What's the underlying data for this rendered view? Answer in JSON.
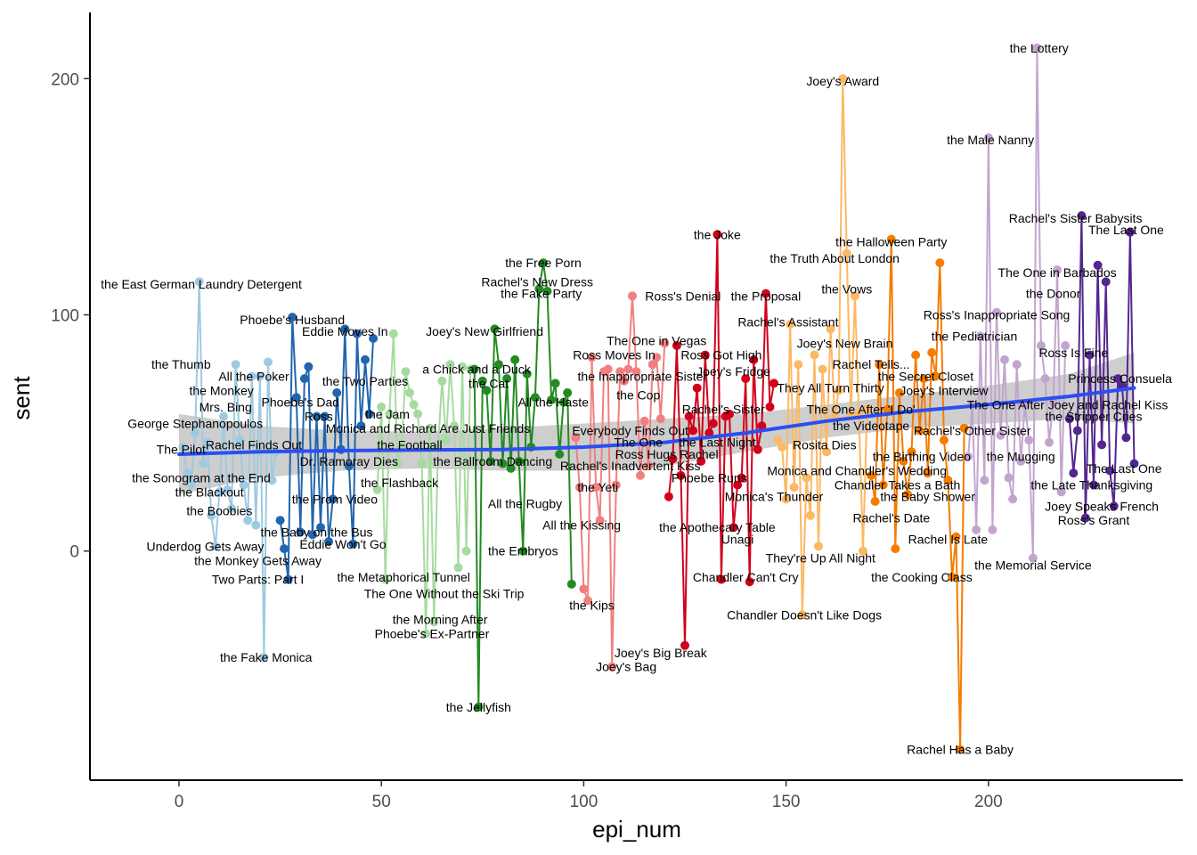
{
  "chart_data": {
    "type": "line",
    "title": "",
    "xlabel": "epi_num",
    "ylabel": "sent",
    "xlim": [
      -22,
      248
    ],
    "ylim": [
      -97,
      228
    ],
    "x_ticks": [
      0,
      50,
      100,
      150,
      200
    ],
    "y_ticks": [
      0,
      100,
      200
    ],
    "grid": false,
    "legend": "none",
    "trend": {
      "type": "smooth",
      "color": "#2a4ff0",
      "band_color": "#bdbdbd",
      "x": [
        0,
        20,
        40,
        60,
        80,
        100,
        120,
        140,
        160,
        180,
        200,
        220,
        236
      ],
      "y": [
        41,
        42,
        42.5,
        42.8,
        43,
        44,
        46,
        50,
        55,
        59,
        62,
        65.5,
        69
      ],
      "lower": [
        24,
        31,
        34,
        35,
        34,
        34,
        36,
        42,
        48,
        52,
        54,
        56,
        54
      ],
      "upper": [
        58,
        53,
        51,
        50.5,
        52,
        54,
        56,
        58,
        62,
        66,
        70,
        75,
        84
      ]
    },
    "series": [
      {
        "color": "#9ecae1",
        "x": [
          1,
          2,
          3,
          4,
          5,
          6,
          7,
          8,
          9,
          10,
          11,
          12,
          13,
          14,
          15,
          16,
          17,
          18,
          19,
          20,
          21,
          22,
          23,
          24
        ],
        "y": [
          44,
          33,
          28,
          50,
          114,
          37,
          46,
          15,
          2,
          25,
          57,
          26,
          18,
          79,
          47,
          28,
          13,
          74,
          11,
          74,
          -45,
          80,
          30,
          42
        ]
      },
      {
        "color": "#2166ac",
        "x": [
          25,
          26,
          27,
          28,
          29,
          30,
          31,
          32,
          33,
          34,
          35,
          36,
          37,
          38,
          39,
          40,
          41,
          42,
          43,
          44,
          45,
          46,
          47,
          48
        ],
        "y": [
          13,
          1,
          -12,
          99,
          65,
          8,
          73,
          78,
          7,
          57,
          10,
          57,
          4,
          22,
          67,
          43,
          94,
          36,
          3,
          92,
          53,
          81,
          58,
          90
        ]
      },
      {
        "color": "#a6dba0",
        "x": [
          49,
          50,
          51,
          52,
          53,
          54,
          55,
          56,
          57,
          58,
          59,
          60,
          61,
          62,
          63,
          64,
          65,
          66,
          67,
          68,
          69,
          70,
          71,
          72
        ],
        "y": [
          26,
          61,
          -12,
          58,
          92,
          37,
          44,
          76,
          67,
          62,
          58,
          37,
          -35,
          52,
          -30,
          44,
          72,
          47,
          79,
          53,
          -7,
          78,
          0,
          77
        ]
      },
      {
        "color": "#228b22",
        "x": [
          73,
          74,
          75,
          76,
          77,
          78,
          79,
          80,
          81,
          82,
          83,
          84,
          85,
          86,
          87,
          88,
          89,
          90,
          91,
          92,
          93,
          94,
          95,
          96,
          97
        ],
        "y": [
          77,
          -66,
          72,
          68,
          38,
          94,
          79,
          37,
          73,
          35,
          81,
          38,
          0,
          75,
          44,
          65,
          111,
          122,
          110,
          64,
          71,
          41,
          63,
          67,
          -14
        ]
      },
      {
        "color": "#f08080",
        "x": [
          98,
          99,
          100,
          101,
          102,
          103,
          104,
          105,
          106,
          107,
          108,
          109,
          110,
          111,
          112,
          113,
          114,
          115,
          116,
          117,
          118,
          119,
          120
        ],
        "y": [
          48,
          27,
          -16,
          -21,
          82,
          27,
          13,
          76,
          77,
          -49,
          28,
          76,
          72,
          77,
          108,
          76,
          32,
          55,
          36,
          79,
          82,
          56,
          88
        ]
      },
      {
        "color": "#d2001a",
        "x": [
          121,
          122,
          123,
          124,
          125,
          126,
          127,
          128,
          129,
          130,
          131,
          132,
          133,
          134,
          135,
          136,
          137,
          138,
          139,
          140,
          141,
          142,
          143,
          144,
          145,
          146,
          147
        ],
        "y": [
          23,
          39,
          87,
          32,
          -40,
          57,
          51,
          69,
          38,
          83,
          50,
          54,
          134,
          -12,
          57,
          58,
          10,
          28,
          31,
          73,
          -13,
          81,
          43,
          53,
          109,
          61,
          71
        ]
      },
      {
        "color": "#fdb863",
        "x": [
          148,
          149,
          150,
          151,
          152,
          153,
          154,
          155,
          156,
          157,
          158,
          159,
          160,
          161,
          162,
          163,
          164,
          165,
          166,
          167,
          168,
          169,
          170
        ],
        "y": [
          47,
          44,
          22,
          96,
          27,
          79,
          -27,
          31,
          15,
          83,
          2,
          77,
          42,
          94,
          57,
          68,
          200,
          126,
          57,
          108,
          58,
          0,
          60
        ]
      },
      {
        "color": "#f57c00",
        "x": [
          171,
          172,
          173,
          174,
          175,
          176,
          177,
          178,
          179,
          180,
          181,
          182,
          183,
          184,
          185,
          186,
          187,
          188,
          189,
          190,
          191,
          192,
          193,
          194
        ],
        "y": [
          32,
          21,
          79,
          28,
          60,
          132,
          1,
          67,
          38,
          24,
          42,
          83,
          51,
          73,
          33,
          84,
          74,
          122,
          47,
          30,
          -11,
          6,
          -84,
          52
        ]
      },
      {
        "color": "#c2a5cf",
        "x": [
          195,
          196,
          197,
          198,
          199,
          200,
          201,
          202,
          203,
          204,
          205,
          206,
          207,
          208,
          209,
          210,
          211,
          212,
          213,
          214,
          215,
          216,
          217,
          218,
          219
        ],
        "y": [
          40,
          62,
          9,
          91,
          30,
          175,
          9,
          101,
          49,
          81,
          31,
          22,
          79,
          38,
          62,
          47,
          -3,
          213,
          87,
          73,
          46,
          63,
          119,
          25,
          87
        ]
      },
      {
        "color": "#54278f",
        "x": [
          220,
          221,
          222,
          223,
          224,
          225,
          226,
          227,
          228,
          229,
          230,
          231,
          232,
          233,
          234,
          235,
          236
        ],
        "y": [
          56,
          33,
          51,
          142,
          14,
          83,
          28,
          121,
          45,
          114,
          34,
          19,
          73,
          70,
          48,
          135,
          37
        ]
      }
    ],
    "labels": [
      {
        "text": "the East German Laundry Detergent",
        "x": 5.5,
        "y": 113
      },
      {
        "text": "Phoebe's Husband",
        "x": 28,
        "y": 98
      },
      {
        "text": "Eddie Moves In",
        "x": 41,
        "y": 93
      },
      {
        "text": "the Thumb",
        "x": 0.5,
        "y": 79
      },
      {
        "text": "All the Poker",
        "x": 18.5,
        "y": 74
      },
      {
        "text": "the Two Parties",
        "x": 46,
        "y": 72
      },
      {
        "text": "the Monkey",
        "x": 10.5,
        "y": 68
      },
      {
        "text": "Phoebe's Dad",
        "x": 30,
        "y": 63
      },
      {
        "text": "Mrs. Bing",
        "x": 11.5,
        "y": 61
      },
      {
        "text": "the Jam",
        "x": 51.5,
        "y": 58
      },
      {
        "text": "Ross",
        "x": 34.5,
        "y": 57
      },
      {
        "text": "George Stephanopoulos",
        "x": 4,
        "y": 54
      },
      {
        "text": "Monica and Richard Are Just Friends",
        "x": 61.5,
        "y": 52
      },
      {
        "text": "Rachel Finds Out",
        "x": 18.5,
        "y": 45
      },
      {
        "text": "the Football",
        "x": 57,
        "y": 45
      },
      {
        "text": "The Pilot",
        "x": 0.5,
        "y": 43
      },
      {
        "text": "Dr. Ramoray Dies",
        "x": 42,
        "y": 38
      },
      {
        "text": "the Ballroom Dancing",
        "x": 77.5,
        "y": 38
      },
      {
        "text": "the Sonogram at the End",
        "x": 5.5,
        "y": 31
      },
      {
        "text": "the Flashback",
        "x": 54.5,
        "y": 29
      },
      {
        "text": "the Blackout",
        "x": 7.5,
        "y": 25
      },
      {
        "text": "the Prom Video",
        "x": 38.5,
        "y": 22
      },
      {
        "text": "the Boobies",
        "x": 10,
        "y": 17
      },
      {
        "text": "the Baby on the Bus",
        "x": 34,
        "y": 8
      },
      {
        "text": "Underdog Gets Away",
        "x": 6.5,
        "y": 2
      },
      {
        "text": "Eddie Won't Go",
        "x": 40.5,
        "y": 3
      },
      {
        "text": "the Monkey Gets Away",
        "x": 19.5,
        "y": -4
      },
      {
        "text": "Two Parts: Part I",
        "x": 19.5,
        "y": -12
      },
      {
        "text": "the Metaphorical Tunnel",
        "x": 55.5,
        "y": -11
      },
      {
        "text": "The One Without the Ski Trip",
        "x": 65.5,
        "y": -18
      },
      {
        "text": "the Morning After",
        "x": 64.5,
        "y": -29
      },
      {
        "text": "Phoebe's Ex-Partner",
        "x": 62.5,
        "y": -35
      },
      {
        "text": "the Fake Monica",
        "x": 21.5,
        "y": -45
      },
      {
        "text": "the Jellyfish",
        "x": 74,
        "y": -66
      },
      {
        "text": "the Free Porn",
        "x": 90,
        "y": 122
      },
      {
        "text": "Rachel's New Dress",
        "x": 88.5,
        "y": 114
      },
      {
        "text": "the Fake Party",
        "x": 89.5,
        "y": 109
      },
      {
        "text": "Joey's New Girlfriend",
        "x": 75.5,
        "y": 93
      },
      {
        "text": "a Chick and a Duck",
        "x": 73.5,
        "y": 77
      },
      {
        "text": "the Cat",
        "x": 76.5,
        "y": 71
      },
      {
        "text": "All the Haste",
        "x": 92.5,
        "y": 63
      },
      {
        "text": "the Embryos",
        "x": 85,
        "y": 0
      },
      {
        "text": "All the Rugby",
        "x": 85.5,
        "y": 20
      },
      {
        "text": "All the Kissing",
        "x": 99.5,
        "y": 11
      },
      {
        "text": "the Yeti",
        "x": 103.5,
        "y": 27
      },
      {
        "text": "the Kips",
        "x": 102,
        "y": -23
      },
      {
        "text": "Joey's Big Break",
        "x": 119,
        "y": -43
      },
      {
        "text": "Joey's Bag",
        "x": 110.5,
        "y": -49
      },
      {
        "text": "Ross Moves In",
        "x": 107.5,
        "y": 83
      },
      {
        "text": "the Inappropriate Sister",
        "x": 114.5,
        "y": 74
      },
      {
        "text": "the Cop",
        "x": 113.5,
        "y": 66
      },
      {
        "text": "Everybody Finds Out",
        "x": 111.5,
        "y": 51
      },
      {
        "text": "The One",
        "x": 113.5,
        "y": 46
      },
      {
        "text": "Ross Hugs Rachel",
        "x": 120.5,
        "y": 41
      },
      {
        "text": "Rachel's Inadvertent Kiss",
        "x": 111.5,
        "y": 36
      },
      {
        "text": "The One in Vegas",
        "x": 118,
        "y": 89
      },
      {
        "text": "Ross's Denial",
        "x": 124.5,
        "y": 108
      },
      {
        "text": "the Joke",
        "x": 133,
        "y": 134
      },
      {
        "text": "the Proposal",
        "x": 145,
        "y": 108
      },
      {
        "text": "Ross Got High",
        "x": 134,
        "y": 83
      },
      {
        "text": "Joey's Fridge",
        "x": 137,
        "y": 76
      },
      {
        "text": "Rachel's Sister",
        "x": 134.5,
        "y": 60
      },
      {
        "text": "the Last Night",
        "x": 133,
        "y": 46
      },
      {
        "text": "Phoebe Runs",
        "x": 131,
        "y": 31
      },
      {
        "text": "Monica's Thunder",
        "x": 147,
        "y": 23
      },
      {
        "text": "the Apothecary Table",
        "x": 133,
        "y": 10
      },
      {
        "text": "Unagi",
        "x": 138,
        "y": 5
      },
      {
        "text": "Chandler Can't Cry",
        "x": 140,
        "y": -11
      },
      {
        "text": "Joey's Award",
        "x": 164,
        "y": 199
      },
      {
        "text": "the Halloween Party",
        "x": 176,
        "y": 131
      },
      {
        "text": "the Truth About London",
        "x": 162,
        "y": 124
      },
      {
        "text": "the Vows",
        "x": 165,
        "y": 111
      },
      {
        "text": "Rachel's Assistant",
        "x": 150.5,
        "y": 97
      },
      {
        "text": "Joey's New Brain",
        "x": 164.5,
        "y": 88
      },
      {
        "text": "Rachel Tells...",
        "x": 171,
        "y": 79
      },
      {
        "text": "They All Turn Thirty",
        "x": 161,
        "y": 69
      },
      {
        "text": "The One After 'I Do'",
        "x": 168.5,
        "y": 60
      },
      {
        "text": "the Videotape",
        "x": 171,
        "y": 53
      },
      {
        "text": "Rosita Dies",
        "x": 159.5,
        "y": 45
      },
      {
        "text": "Monica and Chandler's Wedding",
        "x": 167.5,
        "y": 34
      },
      {
        "text": "They're Up All Night",
        "x": 158.5,
        "y": -3
      },
      {
        "text": "Chandler Doesn't Like Dogs",
        "x": 154.5,
        "y": -27
      },
      {
        "text": "the Secret Closet",
        "x": 184.5,
        "y": 74
      },
      {
        "text": "Joey's Interview",
        "x": 189,
        "y": 68
      },
      {
        "text": "the Birthing Video",
        "x": 183.5,
        "y": 40
      },
      {
        "text": "Chandler Takes a Bath",
        "x": 177.5,
        "y": 28
      },
      {
        "text": "the Baby Shower",
        "x": 185,
        "y": 23
      },
      {
        "text": "Rachel's Date",
        "x": 176,
        "y": 14
      },
      {
        "text": "Rachel Is Late",
        "x": 190,
        "y": 5
      },
      {
        "text": "the Cooking Class",
        "x": 183.5,
        "y": -11
      },
      {
        "text": "Rachel Has a Baby",
        "x": 193,
        "y": -84
      },
      {
        "text": "the Lottery",
        "x": 212.5,
        "y": 213
      },
      {
        "text": "the Male Nanny",
        "x": 200.5,
        "y": 174
      },
      {
        "text": "Rachel's Sister Babysits",
        "x": 221.5,
        "y": 141
      },
      {
        "text": "The Last One",
        "x": 234,
        "y": 136
      },
      {
        "text": "The One in Barbados",
        "x": 217,
        "y": 118
      },
      {
        "text": "the Donor",
        "x": 216,
        "y": 109
      },
      {
        "text": "Ross's Inappropriate Song",
        "x": 202,
        "y": 100
      },
      {
        "text": "the Pediatrician",
        "x": 196.5,
        "y": 91
      },
      {
        "text": "Ross Is Fine",
        "x": 221,
        "y": 84
      },
      {
        "text": "Princess Consuela",
        "x": 232.5,
        "y": 73
      },
      {
        "text": "The One After Joey and Rachel Kiss",
        "x": 219.5,
        "y": 62
      },
      {
        "text": "the Stripper Cries",
        "x": 226,
        "y": 57
      },
      {
        "text": "Rachel's Other Sister",
        "x": 196,
        "y": 51
      },
      {
        "text": "the Mugging",
        "x": 208,
        "y": 40
      },
      {
        "text": "The Last One",
        "x": 233.5,
        "y": 35
      },
      {
        "text": "the Late Thanksgiving",
        "x": 225.5,
        "y": 28
      },
      {
        "text": "Joey Speaks French",
        "x": 228,
        "y": 19
      },
      {
        "text": "Ross's Grant",
        "x": 226,
        "y": 13
      },
      {
        "text": "the Memorial Service",
        "x": 211,
        "y": -6
      }
    ]
  }
}
